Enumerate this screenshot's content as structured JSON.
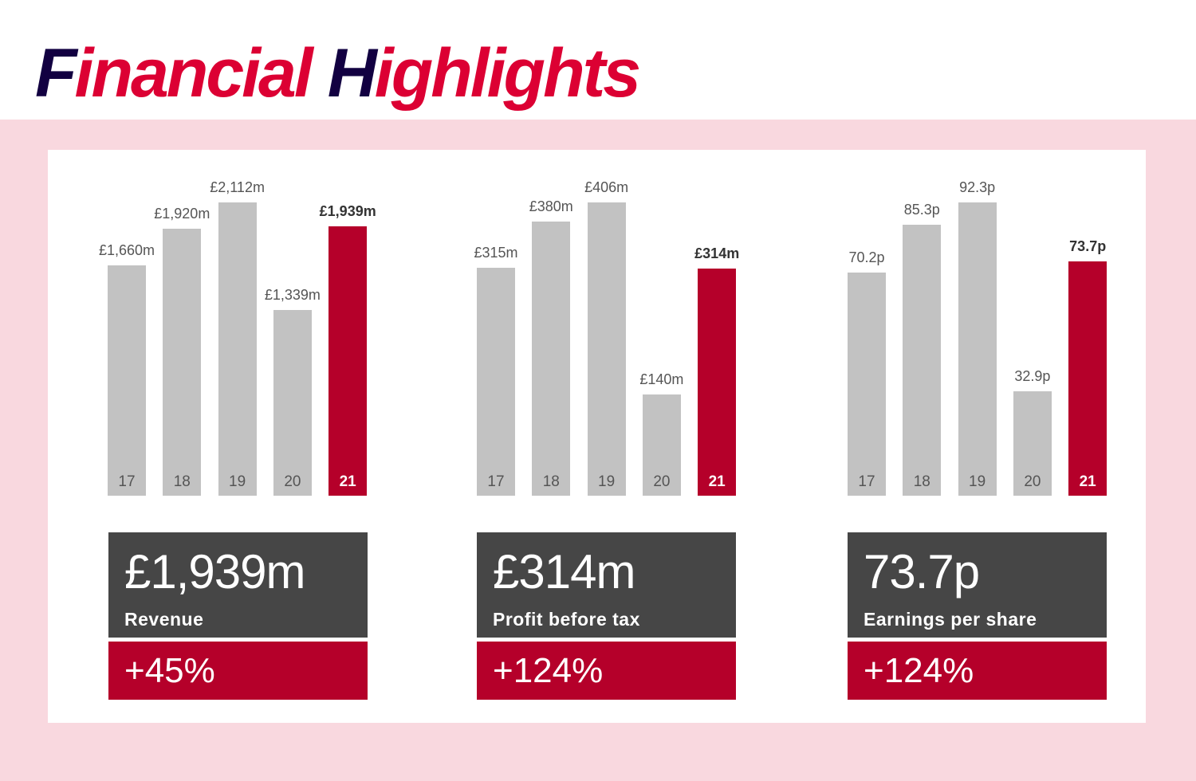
{
  "title": {
    "first_cap": "F",
    "first_rest": "inancial",
    "second_cap": "H",
    "second_rest": "ighlights"
  },
  "colors": {
    "bar": "#c2c2c2",
    "highlight": "#b5002a",
    "card": "#464646",
    "background": "#f9d8df",
    "title_red": "#dc0033",
    "title_navy": "#120041"
  },
  "chart_data": [
    {
      "type": "bar",
      "title": "Revenue",
      "categories": [
        "17",
        "18",
        "19",
        "20",
        "21"
      ],
      "values": [
        1660,
        1920,
        2112,
        1339,
        1939
      ],
      "labels": [
        "£1,660m",
        "£1,920m",
        "£2,112m",
        "£1,339m",
        "£1,939m"
      ],
      "highlight": "21",
      "ylim": [
        0,
        2112
      ]
    },
    {
      "type": "bar",
      "title": "Profit before tax",
      "categories": [
        "17",
        "18",
        "19",
        "20",
        "21"
      ],
      "values": [
        315,
        380,
        406,
        140,
        314
      ],
      "labels": [
        "£315m",
        "£380m",
        "£406m",
        "£140m",
        "£314m"
      ],
      "highlight": "21",
      "ylim": [
        0,
        406
      ]
    },
    {
      "type": "bar",
      "title": "Earnings per share",
      "categories": [
        "17",
        "18",
        "19",
        "20",
        "21"
      ],
      "values": [
        70.2,
        85.3,
        92.3,
        32.9,
        73.7
      ],
      "labels": [
        "70.2p",
        "85.3p",
        "92.3p",
        "32.9p",
        "73.7p"
      ],
      "highlight": "21",
      "ylim": [
        0,
        92.3
      ]
    }
  ],
  "cards": [
    {
      "value": "£1,939m",
      "label": "Revenue",
      "change": "+45%"
    },
    {
      "value": "£314m",
      "label": "Profit before tax",
      "change": "+124%"
    },
    {
      "value": "73.7p",
      "label": "Earnings per share",
      "change": "+124%"
    }
  ]
}
